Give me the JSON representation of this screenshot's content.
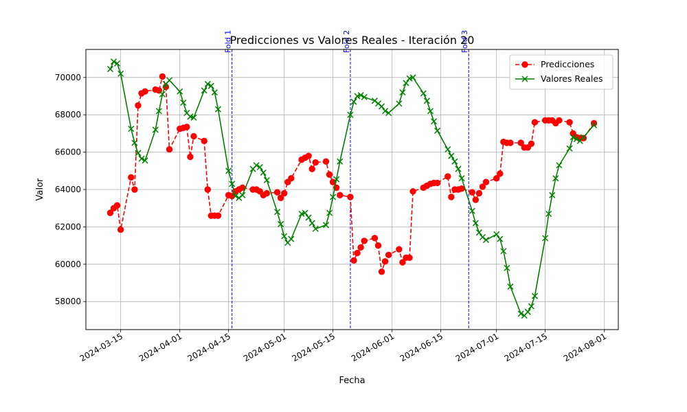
{
  "chart_data": {
    "type": "line",
    "title": "Predicciones vs Valores Reales - Iteración 20",
    "xlabel": "Fecha",
    "ylabel": "Valor",
    "xlim": [
      "2024-03-05",
      "2024-08-05"
    ],
    "ylim": [
      56500,
      71500
    ],
    "grid": true,
    "legend_position": "top-right",
    "x_ticks": [
      "2024-03-15",
      "2024-04-01",
      "2024-04-15",
      "2024-05-01",
      "2024-05-15",
      "2024-06-01",
      "2024-06-15",
      "2024-07-01",
      "2024-07-15",
      "2024-08-01"
    ],
    "y_ticks": [
      58000,
      60000,
      62000,
      64000,
      66000,
      68000,
      70000
    ],
    "vlines": [
      {
        "date": "2024-04-16",
        "label": "Fold 1",
        "color": "#0000ff"
      },
      {
        "date": "2024-05-20",
        "label": "Fold 2",
        "color": "#0000ff"
      },
      {
        "date": "2024-06-23",
        "label": "Fold 3",
        "color": "#0000ff"
      }
    ],
    "series": [
      {
        "name": "Predicciones",
        "color": "#ff0000",
        "style": "dashed",
        "marker": "circle",
        "points": [
          [
            "2024-03-12",
            62750
          ],
          [
            "2024-03-13",
            63000
          ],
          [
            "2024-03-14",
            63150
          ],
          [
            "2024-03-15",
            61850
          ],
          [
            "2024-03-18",
            64650
          ],
          [
            "2024-03-19",
            64000
          ],
          [
            "2024-03-20",
            68500
          ],
          [
            "2024-03-21",
            69150
          ],
          [
            "2024-03-22",
            69250
          ],
          [
            "2024-03-25",
            69350
          ],
          [
            "2024-03-26",
            69300
          ],
          [
            "2024-03-27",
            70050
          ],
          [
            "2024-03-28",
            69500
          ],
          [
            "2024-03-29",
            66150
          ],
          [
            "2024-04-01",
            67250
          ],
          [
            "2024-04-02",
            67300
          ],
          [
            "2024-04-03",
            67350
          ],
          [
            "2024-04-04",
            65750
          ],
          [
            "2024-04-05",
            66850
          ],
          [
            "2024-04-08",
            66600
          ],
          [
            "2024-04-09",
            64000
          ],
          [
            "2024-04-10",
            62600
          ],
          [
            "2024-04-11",
            62600
          ],
          [
            "2024-04-12",
            62600
          ],
          [
            "2024-04-15",
            63700
          ],
          [
            "2024-04-16",
            63650
          ],
          [
            "2024-04-17",
            63900
          ],
          [
            "2024-04-18",
            64000
          ],
          [
            "2024-04-19",
            64100
          ],
          [
            "2024-04-22",
            64000
          ],
          [
            "2024-04-23",
            64000
          ],
          [
            "2024-04-24",
            63900
          ],
          [
            "2024-04-25",
            63700
          ],
          [
            "2024-04-26",
            63800
          ],
          [
            "2024-04-29",
            63850
          ],
          [
            "2024-04-30",
            63550
          ],
          [
            "2024-05-01",
            63800
          ],
          [
            "2024-05-02",
            64400
          ],
          [
            "2024-05-03",
            64600
          ],
          [
            "2024-05-06",
            65600
          ],
          [
            "2024-05-07",
            65700
          ],
          [
            "2024-05-08",
            65800
          ],
          [
            "2024-05-09",
            65100
          ],
          [
            "2024-05-10",
            65450
          ],
          [
            "2024-05-13",
            65500
          ],
          [
            "2024-05-14",
            64800
          ],
          [
            "2024-05-15",
            64400
          ],
          [
            "2024-05-16",
            64100
          ],
          [
            "2024-05-17",
            63700
          ],
          [
            "2024-05-20",
            63600
          ],
          [
            "2024-05-21",
            60200
          ],
          [
            "2024-05-22",
            60600
          ],
          [
            "2024-05-23",
            60900
          ],
          [
            "2024-05-24",
            61250
          ],
          [
            "2024-05-27",
            61400
          ],
          [
            "2024-05-28",
            61000
          ],
          [
            "2024-05-29",
            59600
          ],
          [
            "2024-05-30",
            60150
          ],
          [
            "2024-05-31",
            60500
          ],
          [
            "2024-06-03",
            60800
          ],
          [
            "2024-06-04",
            60100
          ],
          [
            "2024-06-05",
            60350
          ],
          [
            "2024-06-06",
            60350
          ],
          [
            "2024-06-07",
            63900
          ],
          [
            "2024-06-10",
            64100
          ],
          [
            "2024-06-11",
            64200
          ],
          [
            "2024-06-12",
            64300
          ],
          [
            "2024-06-13",
            64350
          ],
          [
            "2024-06-14",
            64350
          ],
          [
            "2024-06-17",
            64700
          ],
          [
            "2024-06-18",
            63600
          ],
          [
            "2024-06-19",
            64000
          ],
          [
            "2024-06-20",
            64000
          ],
          [
            "2024-06-21",
            64050
          ],
          [
            "2024-06-24",
            63850
          ],
          [
            "2024-06-25",
            63450
          ],
          [
            "2024-06-26",
            63800
          ],
          [
            "2024-06-27",
            64150
          ],
          [
            "2024-06-28",
            64400
          ],
          [
            "2024-07-01",
            64600
          ],
          [
            "2024-07-02",
            64850
          ],
          [
            "2024-07-03",
            66550
          ],
          [
            "2024-07-04",
            66500
          ],
          [
            "2024-07-05",
            66500
          ],
          [
            "2024-07-08",
            66500
          ],
          [
            "2024-07-09",
            66250
          ],
          [
            "2024-07-10",
            66250
          ],
          [
            "2024-07-11",
            66450
          ],
          [
            "2024-07-12",
            67600
          ],
          [
            "2024-07-15",
            67700
          ],
          [
            "2024-07-16",
            67700
          ],
          [
            "2024-07-17",
            67700
          ],
          [
            "2024-07-18",
            67550
          ],
          [
            "2024-07-19",
            67700
          ],
          [
            "2024-07-22",
            67600
          ],
          [
            "2024-07-23",
            67000
          ],
          [
            "2024-07-24",
            66800
          ],
          [
            "2024-07-25",
            66750
          ],
          [
            "2024-07-26",
            66750
          ],
          [
            "2024-07-29",
            67550
          ]
        ]
      },
      {
        "name": "Valores Reales",
        "color": "#008000",
        "style": "solid",
        "marker": "x",
        "points": [
          [
            "2024-03-12",
            70450
          ],
          [
            "2024-03-13",
            70850
          ],
          [
            "2024-03-14",
            70750
          ],
          [
            "2024-03-15",
            70200
          ],
          [
            "2024-03-18",
            67250
          ],
          [
            "2024-03-19",
            66500
          ],
          [
            "2024-03-20",
            65950
          ],
          [
            "2024-03-21",
            65650
          ],
          [
            "2024-03-22",
            65550
          ],
          [
            "2024-03-25",
            67200
          ],
          [
            "2024-03-26",
            68200
          ],
          [
            "2024-03-27",
            69100
          ],
          [
            "2024-03-28",
            69650
          ],
          [
            "2024-03-29",
            69850
          ],
          [
            "2024-04-01",
            69250
          ],
          [
            "2024-04-02",
            68650
          ],
          [
            "2024-04-03",
            68100
          ],
          [
            "2024-04-04",
            67900
          ],
          [
            "2024-04-05",
            67850
          ],
          [
            "2024-04-08",
            69300
          ],
          [
            "2024-04-09",
            69650
          ],
          [
            "2024-04-10",
            69550
          ],
          [
            "2024-04-11",
            69200
          ],
          [
            "2024-04-12",
            68300
          ],
          [
            "2024-04-15",
            65000
          ],
          [
            "2024-04-16",
            64300
          ],
          [
            "2024-04-17",
            63650
          ],
          [
            "2024-04-18",
            63550
          ],
          [
            "2024-04-19",
            63700
          ],
          [
            "2024-04-22",
            65100
          ],
          [
            "2024-04-23",
            65300
          ],
          [
            "2024-04-24",
            65200
          ],
          [
            "2024-04-25",
            64900
          ],
          [
            "2024-04-26",
            64500
          ],
          [
            "2024-04-29",
            62800
          ],
          [
            "2024-04-30",
            62150
          ],
          [
            "2024-05-01",
            61500
          ],
          [
            "2024-05-02",
            61150
          ],
          [
            "2024-05-03",
            61350
          ],
          [
            "2024-05-06",
            62700
          ],
          [
            "2024-05-07",
            62750
          ],
          [
            "2024-05-08",
            62500
          ],
          [
            "2024-05-09",
            62200
          ],
          [
            "2024-05-10",
            61900
          ],
          [
            "2024-05-13",
            62100
          ],
          [
            "2024-05-14",
            62750
          ],
          [
            "2024-05-15",
            63600
          ],
          [
            "2024-05-16",
            64550
          ],
          [
            "2024-05-17",
            65500
          ],
          [
            "2024-05-20",
            68000
          ],
          [
            "2024-05-21",
            68700
          ],
          [
            "2024-05-22",
            69000
          ],
          [
            "2024-05-23",
            69050
          ],
          [
            "2024-05-24",
            68950
          ],
          [
            "2024-05-27",
            68750
          ],
          [
            "2024-05-28",
            68600
          ],
          [
            "2024-05-29",
            68450
          ],
          [
            "2024-05-30",
            68200
          ],
          [
            "2024-05-31",
            68100
          ],
          [
            "2024-06-03",
            68600
          ],
          [
            "2024-06-04",
            69200
          ],
          [
            "2024-06-05",
            69700
          ],
          [
            "2024-06-06",
            69950
          ],
          [
            "2024-06-07",
            70000
          ],
          [
            "2024-06-10",
            69150
          ],
          [
            "2024-06-11",
            68750
          ],
          [
            "2024-06-12",
            68200
          ],
          [
            "2024-06-13",
            67650
          ],
          [
            "2024-06-14",
            67150
          ],
          [
            "2024-06-17",
            66150
          ],
          [
            "2024-06-18",
            65800
          ],
          [
            "2024-06-19",
            65500
          ],
          [
            "2024-06-20",
            65100
          ],
          [
            "2024-06-21",
            64600
          ],
          [
            "2024-06-24",
            62850
          ],
          [
            "2024-06-25",
            62200
          ],
          [
            "2024-06-26",
            61700
          ],
          [
            "2024-06-27",
            61450
          ],
          [
            "2024-06-28",
            61300
          ],
          [
            "2024-07-01",
            61600
          ],
          [
            "2024-07-02",
            61350
          ],
          [
            "2024-07-03",
            60700
          ],
          [
            "2024-07-04",
            59800
          ],
          [
            "2024-07-05",
            58800
          ],
          [
            "2024-07-08",
            57350
          ],
          [
            "2024-07-09",
            57250
          ],
          [
            "2024-07-10",
            57450
          ],
          [
            "2024-07-11",
            57750
          ],
          [
            "2024-07-12",
            58300
          ],
          [
            "2024-07-15",
            61400
          ],
          [
            "2024-07-16",
            62700
          ],
          [
            "2024-07-17",
            63700
          ],
          [
            "2024-07-18",
            64600
          ],
          [
            "2024-07-19",
            65300
          ],
          [
            "2024-07-22",
            66200
          ],
          [
            "2024-07-23",
            66800
          ],
          [
            "2024-07-24",
            66700
          ],
          [
            "2024-07-25",
            66600
          ],
          [
            "2024-07-26",
            66800
          ],
          [
            "2024-07-29",
            67450
          ]
        ]
      }
    ]
  }
}
